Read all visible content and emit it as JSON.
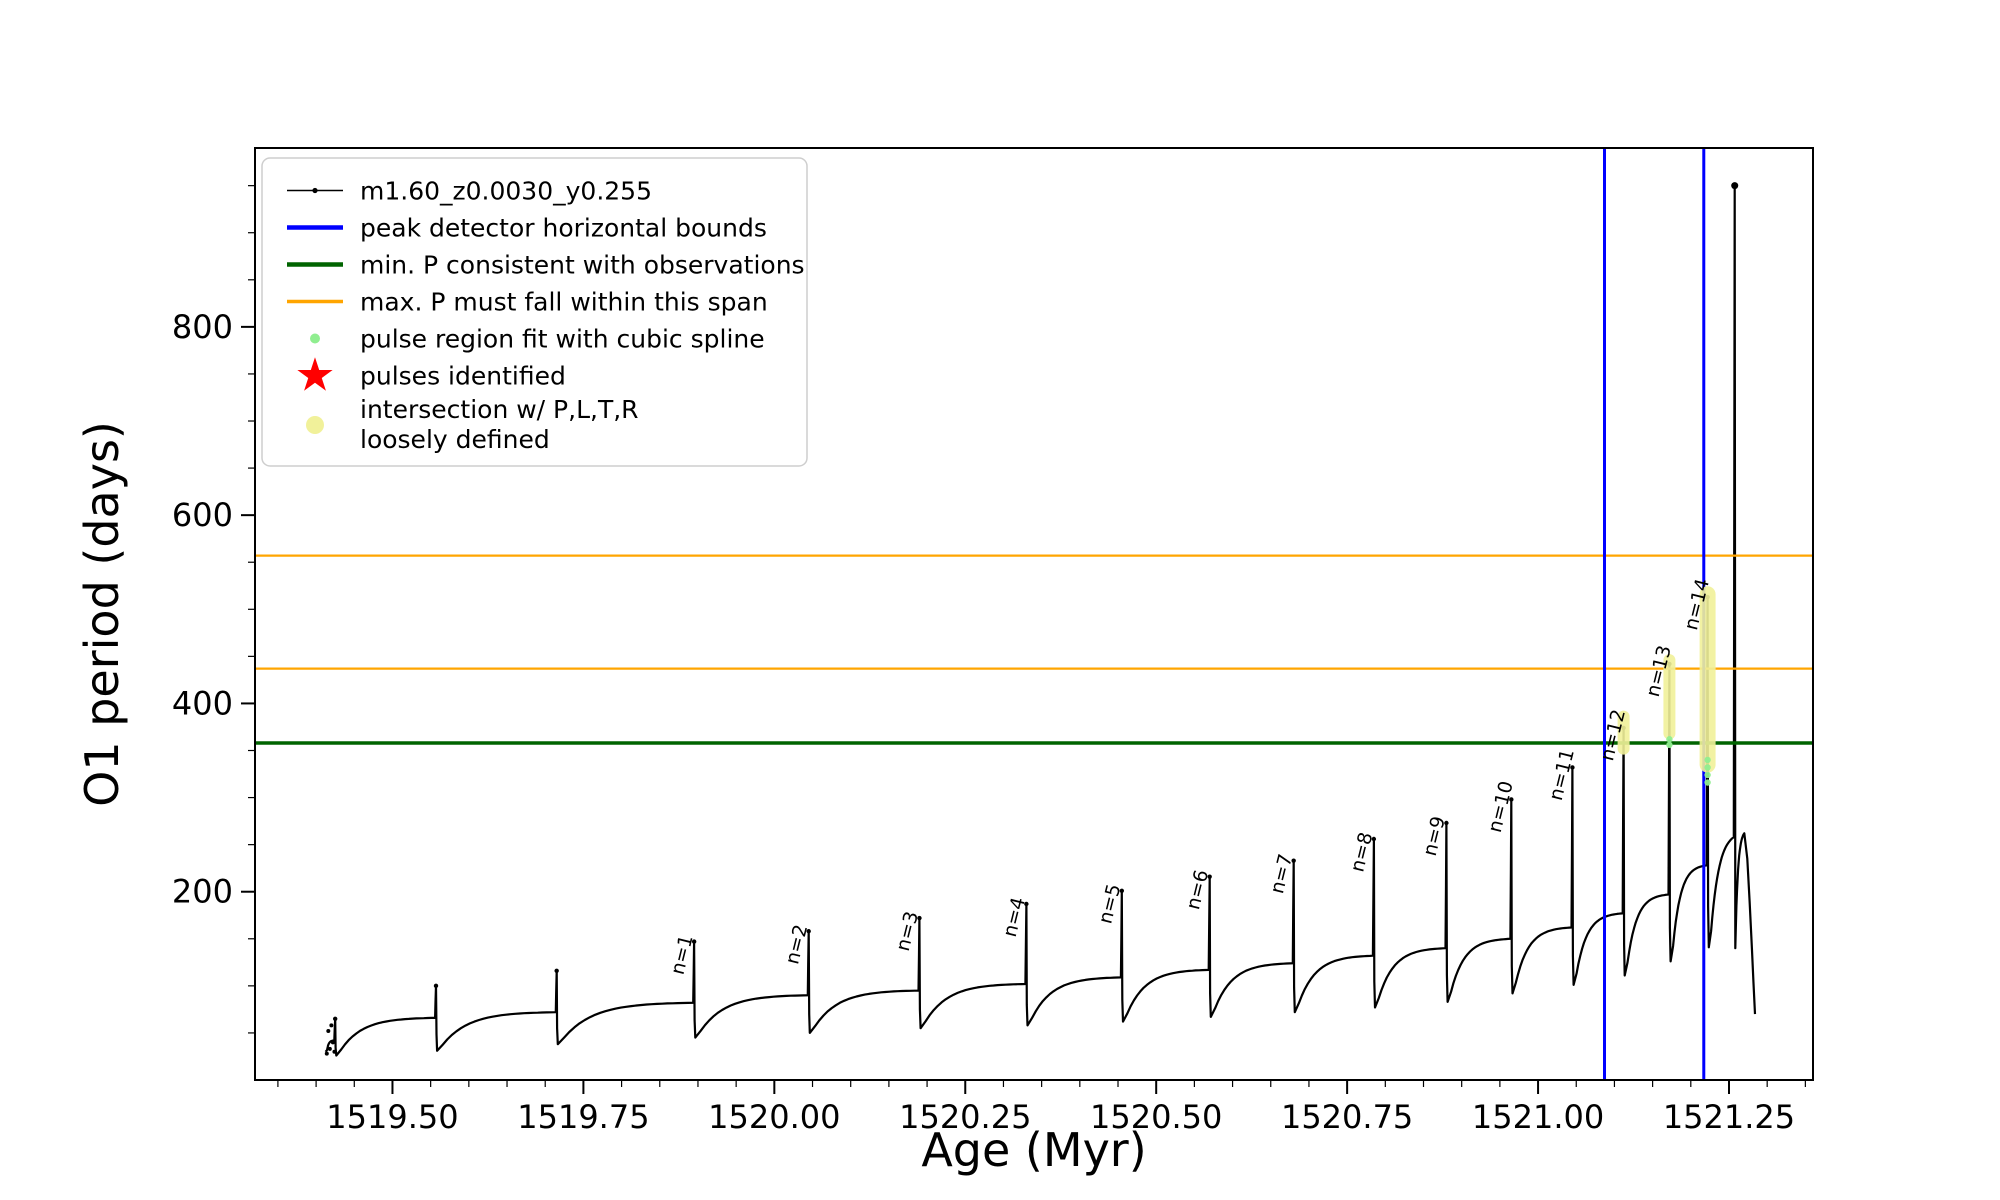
{
  "figure": {
    "background": "#ffffff"
  },
  "chart_data": {
    "type": "line",
    "title": "",
    "xlabel": "Age (Myr)",
    "ylabel": "O1 period (days)",
    "xlim": [
      1519.32,
      1521.36
    ],
    "ylim": [
      0,
      990
    ],
    "xticks": [
      1519.5,
      1519.75,
      1520.0,
      1520.25,
      1520.5,
      1520.75,
      1521.0,
      1521.25
    ],
    "xtick_labels": [
      "1519.50",
      "1519.75",
      "1520.00",
      "1520.25",
      "1520.50",
      "1520.75",
      "1521.00",
      "1521.25"
    ],
    "yticks": [
      200,
      400,
      600,
      800
    ],
    "ytick_labels": [
      "200",
      "400",
      "600",
      "800"
    ],
    "minor_xtick_step": 0.05,
    "minor_ytick_step": 50,
    "grid": false,
    "series_name": "m1.60_z0.0030_y0.255",
    "series_color": "#000000",
    "horizontal_lines": [
      {
        "name": "min-P-consistent-with-observations",
        "y": 358,
        "color": "#006400",
        "width": 3.5
      },
      {
        "name": "max-P-span-lower",
        "y": 437,
        "color": "#ffa500",
        "width": 2.2
      },
      {
        "name": "max-P-span-upper",
        "y": 557,
        "color": "#ffa500",
        "width": 2.2
      }
    ],
    "vertical_lines": [
      {
        "name": "peak-detector-left-bound",
        "x": 1521.087,
        "color": "#0000ff",
        "width": 3
      },
      {
        "name": "peak-detector-right-bound",
        "x": 1521.217,
        "color": "#0000ff",
        "width": 3
      }
    ],
    "initial_scatter": [
      [
        1519.414,
        28
      ],
      [
        1519.416,
        52
      ],
      [
        1519.418,
        33
      ],
      [
        1519.42,
        58
      ],
      [
        1519.422,
        40
      ],
      [
        1519.424,
        30
      ]
    ],
    "pulses": [
      {
        "n": null,
        "x": 1519.425,
        "peak": 65,
        "base": 42,
        "min_after": 26
      },
      {
        "n": null,
        "x": 1519.557,
        "peak": 100,
        "base": 66,
        "min_after": 31
      },
      {
        "n": null,
        "x": 1519.715,
        "peak": 116,
        "base": 72,
        "min_after": 38
      },
      {
        "n": 1,
        "x": 1519.895,
        "peak": 147,
        "base": 82,
        "min_after": 45
      },
      {
        "n": 2,
        "x": 1520.045,
        "peak": 158,
        "base": 90,
        "min_after": 50
      },
      {
        "n": 3,
        "x": 1520.19,
        "peak": 172,
        "base": 95,
        "min_after": 55
      },
      {
        "n": 4,
        "x": 1520.33,
        "peak": 187,
        "base": 102,
        "min_after": 58
      },
      {
        "n": 5,
        "x": 1520.455,
        "peak": 201,
        "base": 109,
        "min_after": 62
      },
      {
        "n": 6,
        "x": 1520.57,
        "peak": 216,
        "base": 117,
        "min_after": 67
      },
      {
        "n": 7,
        "x": 1520.68,
        "peak": 233,
        "base": 124,
        "min_after": 72
      },
      {
        "n": 8,
        "x": 1520.785,
        "peak": 256,
        "base": 132,
        "min_after": 77
      },
      {
        "n": 9,
        "x": 1520.88,
        "peak": 273,
        "base": 140,
        "min_after": 83
      },
      {
        "n": 10,
        "x": 1520.965,
        "peak": 298,
        "base": 150,
        "min_after": 92
      },
      {
        "n": 11,
        "x": 1521.045,
        "peak": 332,
        "base": 162,
        "min_after": 101
      },
      {
        "n": 12,
        "x": 1521.112,
        "peak": 374,
        "base": 177,
        "min_after": 111
      },
      {
        "n": 13,
        "x": 1521.172,
        "peak": 442,
        "base": 197,
        "min_after": 126
      },
      {
        "n": 14,
        "x": 1521.222,
        "peak": 513,
        "base": 228,
        "min_after": 141
      }
    ],
    "final_spike": {
      "x": 1521.2575,
      "peak": 950,
      "base": 258,
      "min_after": 140
    },
    "final_hump": {
      "x": 1521.27,
      "peak": 262,
      "end_x": 1521.284,
      "end_y": 70
    },
    "intersections": [
      {
        "pulse": 12,
        "x": 1521.112,
        "y_from": 352,
        "y_to": 386,
        "width": 12
      },
      {
        "pulse": 13,
        "x": 1521.172,
        "y_from": 368,
        "y_to": 446,
        "width": 12
      },
      {
        "pulse": 14,
        "x": 1521.222,
        "y_from": 335,
        "y_to": 516,
        "width": 16
      }
    ],
    "intersection_color": "#f1f19a",
    "spline_points": [
      {
        "pulse": 14,
        "x": 1521.222,
        "values": [
          316,
          324,
          332,
          340
        ]
      },
      {
        "pulse": 13,
        "x": 1521.172,
        "values": [
          356,
          362
        ]
      }
    ],
    "spline_color": "#90ee90",
    "pulse_label_prefix": "n="
  },
  "legend": {
    "entries": [
      {
        "lines": [
          "m1.60_z0.0030_y0.255"
        ],
        "marker": "line-dot",
        "color": "#000000"
      },
      {
        "lines": [
          "peak detector horizontal bounds"
        ],
        "marker": "line",
        "color": "#0000ff"
      },
      {
        "lines": [
          "min. P consistent with observations"
        ],
        "marker": "line",
        "color": "#006400"
      },
      {
        "lines": [
          "max. P must fall within this span"
        ],
        "marker": "line",
        "color": "#ffa500"
      },
      {
        "lines": [
          "pulse region fit with cubic spline"
        ],
        "marker": "dot-small",
        "color": "#90ee90"
      },
      {
        "lines": [
          "pulses identified"
        ],
        "marker": "star",
        "color": "#ff0000"
      },
      {
        "lines": [
          "intersection w/ P,L,T,R",
          "loosely defined"
        ],
        "marker": "dot-large",
        "color": "#f1f19a"
      }
    ]
  }
}
